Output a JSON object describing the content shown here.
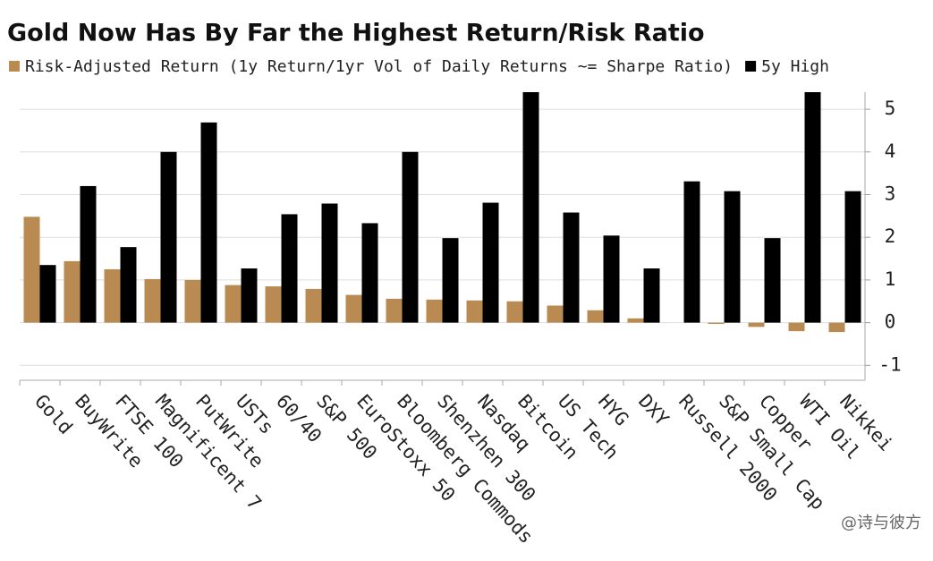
{
  "chart_data": {
    "type": "bar",
    "title": "Gold Now Has By Far the Highest Return/Risk Ratio",
    "categories": [
      "Gold",
      "BuyWrite",
      "FTSE 100",
      "Magnificent 7",
      "PutWrite",
      "USTs",
      "60/40",
      "S&P 500",
      "EuroStoxx 50",
      "Bloomberg Commods",
      "Shenzhen 300",
      "Nasdaq",
      "Bitcoin",
      "US Tech",
      "HYG",
      "DXY",
      "Russell 2000",
      "S&P Small Cap",
      "Copper",
      "WTI Oil",
      "Nikkei"
    ],
    "series": [
      {
        "name": "Risk-Adjusted Return (1y Return/1yr Vol of Daily Returns ~= Sharpe Ratio)",
        "color": "#b98b52",
        "values": [
          2.48,
          1.44,
          1.25,
          1.02,
          1.0,
          0.88,
          0.85,
          0.79,
          0.65,
          0.56,
          0.54,
          0.52,
          0.5,
          0.4,
          0.29,
          0.1,
          0.0,
          -0.03,
          -0.1,
          -0.2,
          -0.22
        ]
      },
      {
        "name": "5y High",
        "color": "#000000",
        "values": [
          1.35,
          3.2,
          1.77,
          4.0,
          4.69,
          1.27,
          2.54,
          2.79,
          2.33,
          4.0,
          1.98,
          2.81,
          5.4,
          2.58,
          2.04,
          1.27,
          3.31,
          3.08,
          1.98,
          5.4,
          3.08
        ]
      }
    ],
    "ylim": [
      -1.35,
      5.4
    ],
    "yticks": [
      -1,
      0,
      1,
      2,
      3,
      4,
      5
    ],
    "grid": true,
    "legend": "top",
    "watermark": "@诗与彼方"
  }
}
